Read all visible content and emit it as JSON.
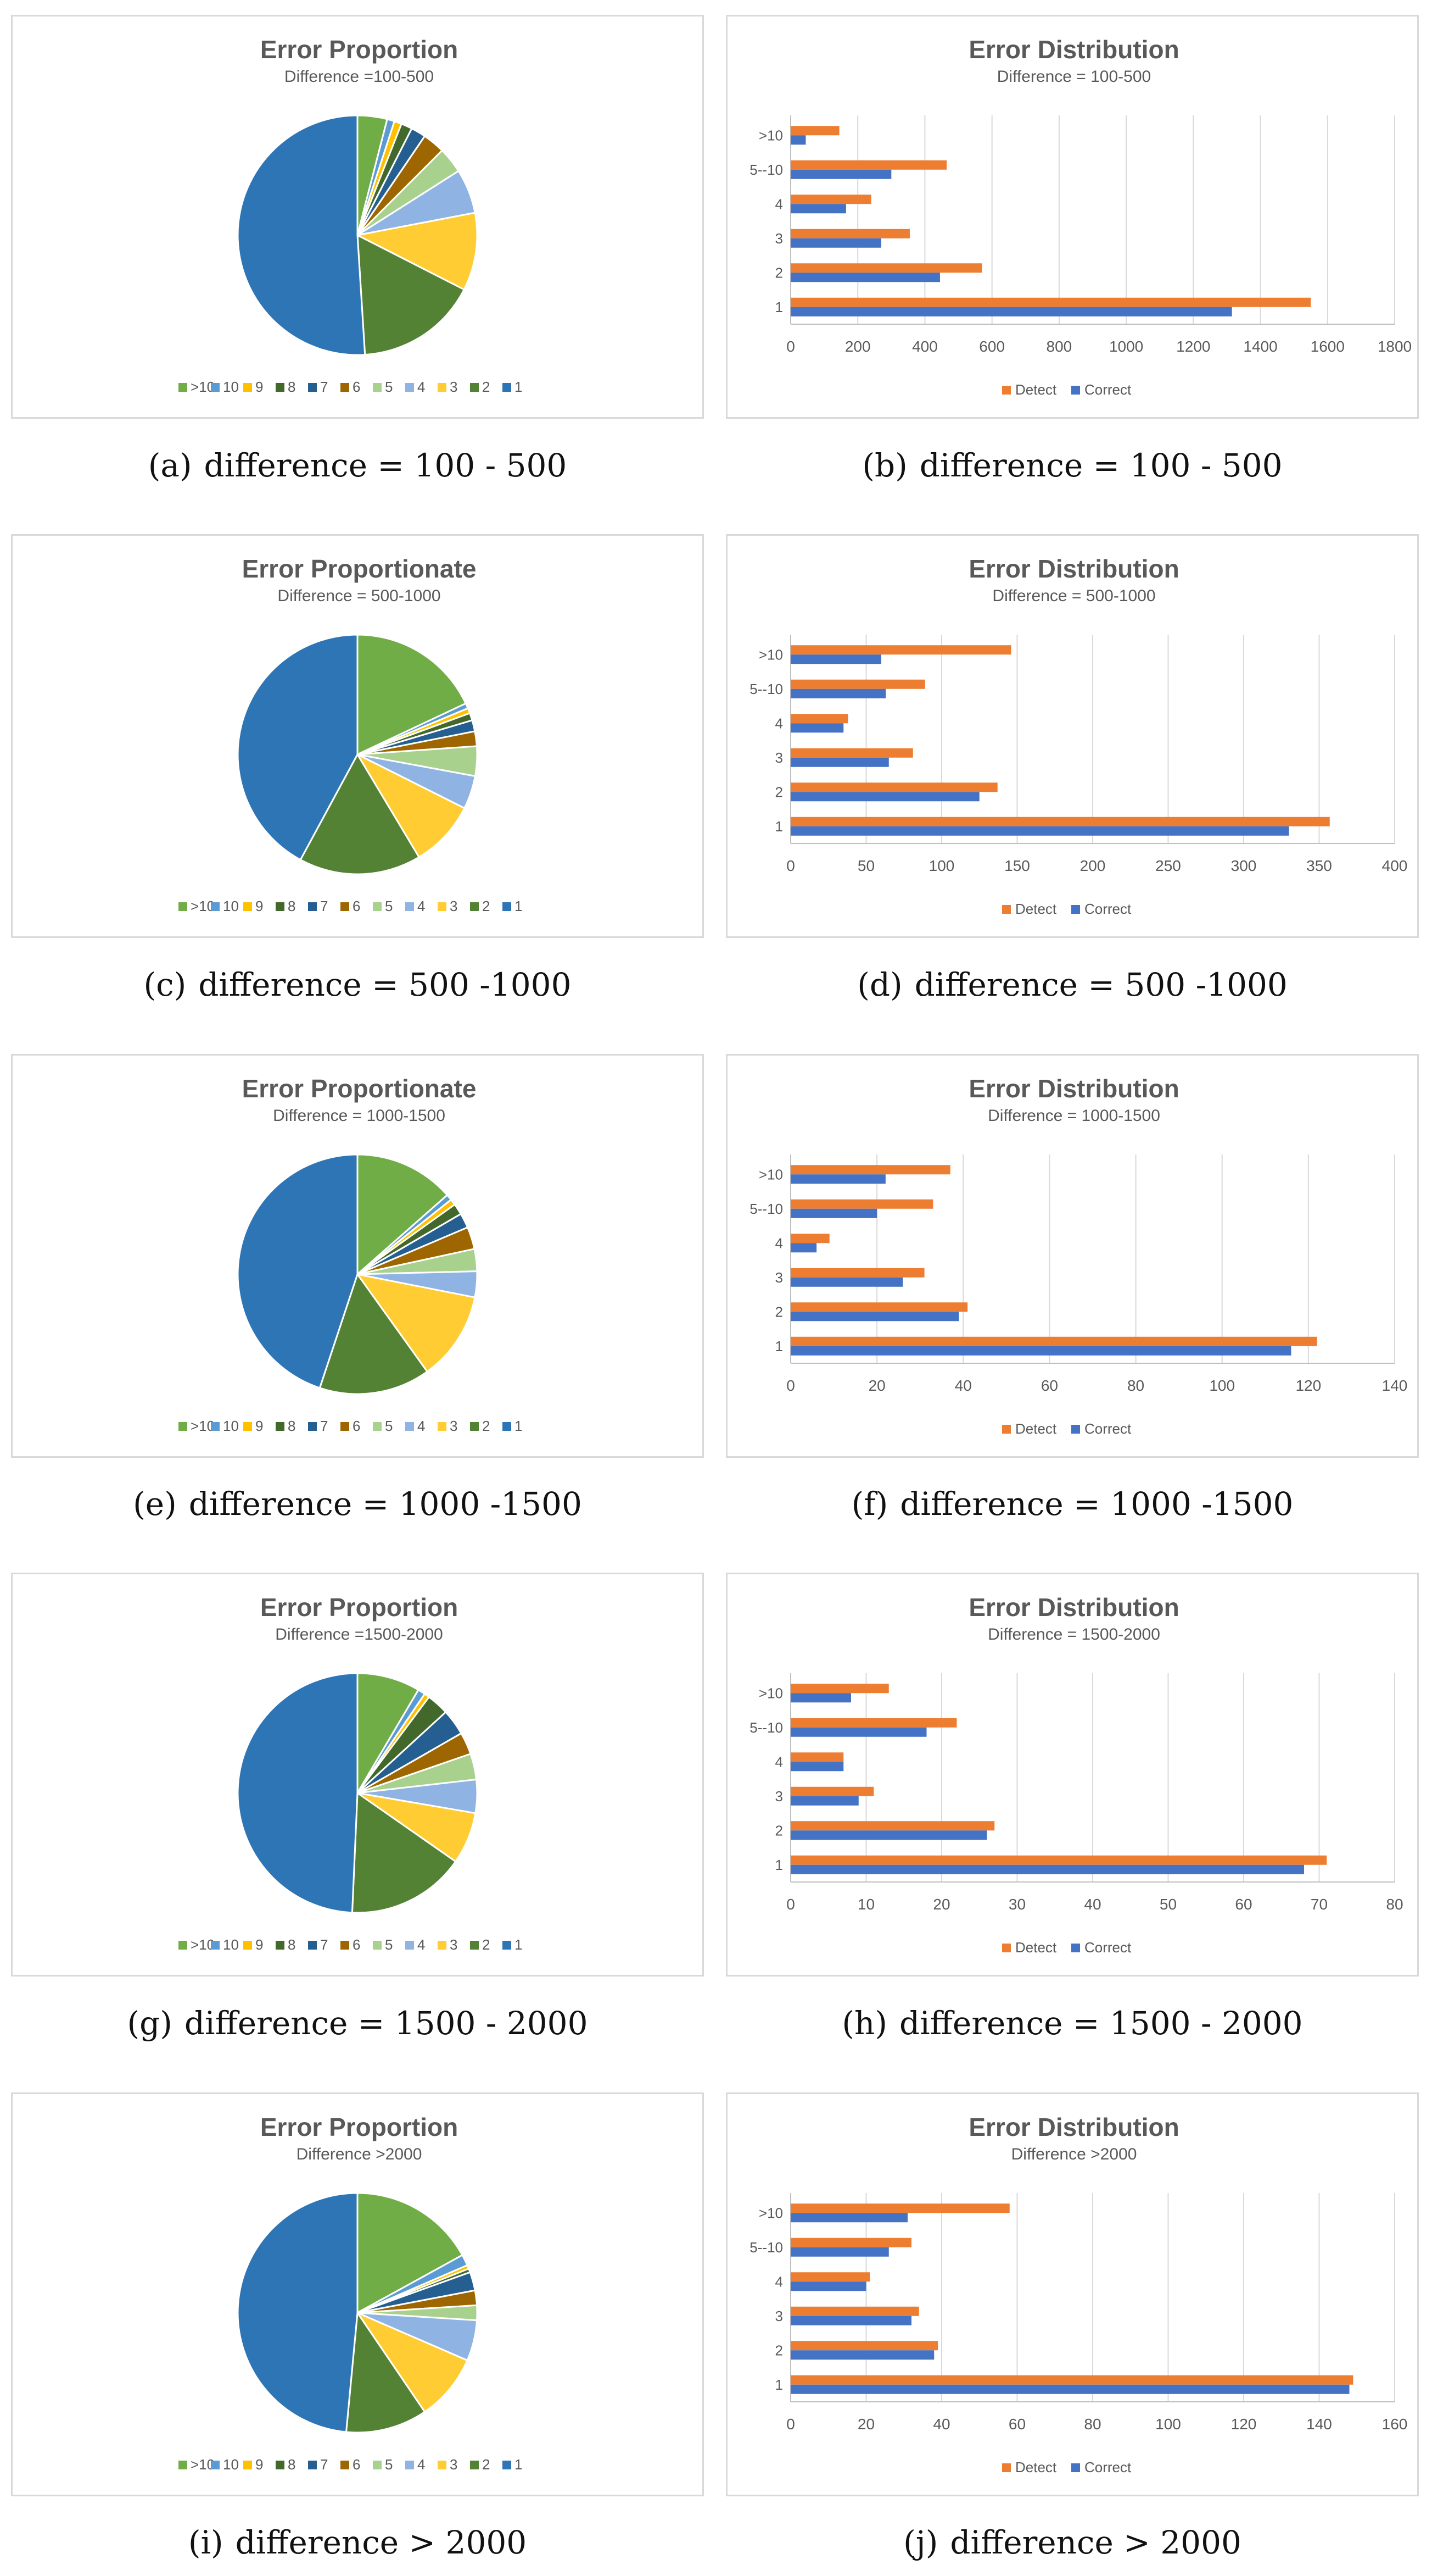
{
  "figure": {
    "pie_legend_labels": [
      ">10",
      "10",
      "9",
      "8",
      "7",
      "6",
      "5",
      "4",
      "3",
      "2",
      "1"
    ],
    "pie_colors": [
      "#70ad47",
      "#5b9bd5",
      "#ffc000",
      "#43682b",
      "#255e91",
      "#9e6600",
      "#a9d18e",
      "#8fb4e3",
      "#ffcd33",
      "#548235",
      "#2e75b6"
    ],
    "bar_series": [
      "Detect",
      "Correct"
    ],
    "bar_colors": {
      "Detect": "#ed7d31",
      "Correct": "#4472c4"
    },
    "bar_categories": [
      "1",
      "2",
      "3",
      "4",
      "5--10",
      ">10"
    ]
  },
  "chart_data": [
    {
      "id": "a",
      "type": "pie",
      "title": "Error Proportion",
      "subtitle": "Difference =100-500",
      "categories": [
        ">10",
        "10",
        "9",
        "8",
        "7",
        "6",
        "5",
        "4",
        "3",
        "2",
        "1"
      ],
      "values": [
        4.0,
        1.0,
        1.0,
        1.5,
        2.0,
        3.0,
        3.5,
        6.0,
        10.5,
        16.5,
        51.0
      ],
      "caption_label": "(a)",
      "caption_text": "difference = 100 - 500"
    },
    {
      "id": "b",
      "type": "bar",
      "orientation": "horizontal",
      "title": "Error Distribution",
      "subtitle": "Difference = 100-500",
      "categories": [
        "1",
        "2",
        "3",
        "4",
        "5--10",
        ">10"
      ],
      "series": [
        {
          "name": "Detect",
          "values": [
            1550,
            570,
            355,
            240,
            465,
            145
          ]
        },
        {
          "name": "Correct",
          "values": [
            1315,
            445,
            270,
            165,
            300,
            45
          ]
        }
      ],
      "xlim": [
        0,
        1800
      ],
      "ticks": [
        0,
        200,
        400,
        600,
        800,
        1000,
        1200,
        1400,
        1600,
        1800
      ],
      "caption_label": "(b)",
      "caption_text": "difference = 100 - 500"
    },
    {
      "id": "c",
      "type": "pie",
      "title": "Error Proportionate",
      "subtitle": "Difference = 500-1000",
      "categories": [
        ">10",
        "10",
        "9",
        "8",
        "7",
        "6",
        "5",
        "4",
        "3",
        "2",
        "1"
      ],
      "values": [
        18.0,
        0.7,
        0.7,
        1.0,
        1.5,
        2.0,
        4.0,
        4.5,
        9.0,
        16.5,
        42.1
      ],
      "caption_label": "(c)",
      "caption_text": "difference = 500 -1000"
    },
    {
      "id": "d",
      "type": "bar",
      "orientation": "horizontal",
      "title": "Error Distribution",
      "subtitle": "Difference = 500-1000",
      "categories": [
        "1",
        "2",
        "3",
        "4",
        "5--10",
        ">10"
      ],
      "series": [
        {
          "name": "Detect",
          "values": [
            357,
            137,
            81,
            38,
            89,
            146
          ]
        },
        {
          "name": "Correct",
          "values": [
            330,
            125,
            65,
            35,
            63,
            60
          ]
        }
      ],
      "xlim": [
        0,
        400
      ],
      "ticks": [
        0,
        50,
        100,
        150,
        200,
        250,
        300,
        350,
        400
      ],
      "caption_label": "(d)",
      "caption_text": "difference = 500 -1000"
    },
    {
      "id": "e",
      "type": "pie",
      "title": "Error Proportionate",
      "subtitle": "Difference = 1000-1500",
      "categories": [
        ">10",
        "10",
        "9",
        "8",
        "7",
        "6",
        "5",
        "4",
        "3",
        "2",
        "1"
      ],
      "values": [
        13.5,
        0.8,
        0.8,
        1.5,
        2.0,
        3.0,
        3.0,
        3.5,
        12.0,
        15.0,
        44.9
      ],
      "caption_label": "(e)",
      "caption_text": "difference = 1000 -1500"
    },
    {
      "id": "f",
      "type": "bar",
      "orientation": "horizontal",
      "title": "Error Distribution",
      "subtitle": "Difference = 1000-1500",
      "categories": [
        "1",
        "2",
        "3",
        "4",
        "5--10",
        ">10"
      ],
      "series": [
        {
          "name": "Detect",
          "values": [
            122,
            41,
            31,
            9,
            33,
            37
          ]
        },
        {
          "name": "Correct",
          "values": [
            116,
            39,
            26,
            6,
            20,
            22
          ]
        }
      ],
      "xlim": [
        0,
        140
      ],
      "ticks": [
        0,
        20,
        40,
        60,
        80,
        100,
        120,
        140
      ],
      "caption_label": "(f)",
      "caption_text": "difference = 1000 -1500"
    },
    {
      "id": "g",
      "type": "pie",
      "title": "Error Proportion",
      "subtitle": "Difference =1500-2000",
      "categories": [
        ">10",
        "10",
        "9",
        "8",
        "7",
        "6",
        "5",
        "4",
        "3",
        "2",
        "1"
      ],
      "values": [
        8.5,
        1.0,
        0.7,
        3.0,
        3.5,
        3.0,
        3.5,
        4.5,
        7.0,
        16.0,
        49.3
      ],
      "caption_label": "(g)",
      "caption_text": "difference = 1500 - 2000"
    },
    {
      "id": "h",
      "type": "bar",
      "orientation": "horizontal",
      "title": "Error Distribution",
      "subtitle": "Difference = 1500-2000",
      "categories": [
        "1",
        "2",
        "3",
        "4",
        "5--10",
        ">10"
      ],
      "series": [
        {
          "name": "Detect",
          "values": [
            71,
            27,
            11,
            7,
            22,
            13
          ]
        },
        {
          "name": "Correct",
          "values": [
            68,
            26,
            9,
            7,
            18,
            8
          ]
        }
      ],
      "xlim": [
        0,
        80
      ],
      "ticks": [
        0,
        10,
        20,
        30,
        40,
        50,
        60,
        70,
        80
      ],
      "caption_label": "(h)",
      "caption_text": "difference = 1500 - 2000"
    },
    {
      "id": "i",
      "type": "pie",
      "title": "Error Proportion",
      "subtitle": "Difference >2000",
      "categories": [
        ">10",
        "10",
        "9",
        "8",
        "7",
        "6",
        "5",
        "4",
        "3",
        "2",
        "1"
      ],
      "values": [
        17.0,
        1.5,
        0.5,
        0.5,
        2.5,
        2.0,
        2.0,
        5.5,
        9.0,
        11.0,
        48.5
      ],
      "caption_label": "(i)",
      "caption_text": "difference > 2000"
    },
    {
      "id": "j",
      "type": "bar",
      "orientation": "horizontal",
      "title": "Error Distribution",
      "subtitle": "Difference >2000",
      "categories": [
        "1",
        "2",
        "3",
        "4",
        "5--10",
        ">10"
      ],
      "series": [
        {
          "name": "Detect",
          "values": [
            149,
            39,
            34,
            21,
            32,
            58
          ]
        },
        {
          "name": "Correct",
          "values": [
            148,
            38,
            32,
            20,
            26,
            31
          ]
        }
      ],
      "xlim": [
        0,
        160
      ],
      "ticks": [
        0,
        20,
        40,
        60,
        80,
        100,
        120,
        140,
        160
      ],
      "caption_label": "(j)",
      "caption_text": "difference > 2000"
    }
  ]
}
